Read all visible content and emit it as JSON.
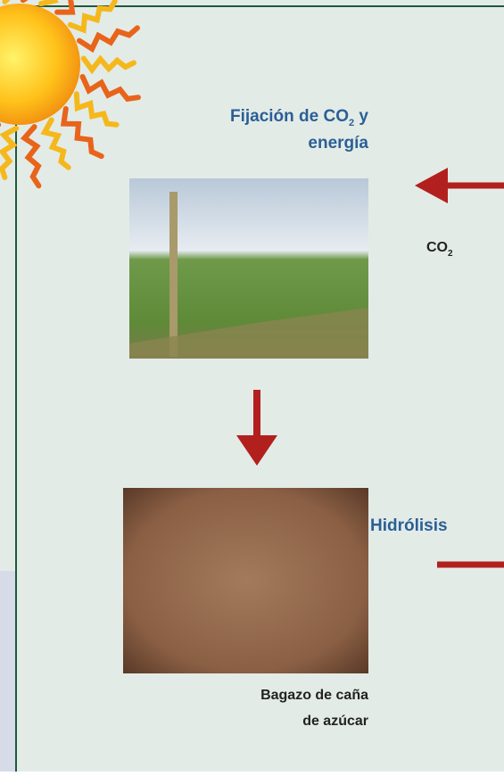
{
  "labels": {
    "fixation": {
      "line1_before": "Fijación de CO",
      "line1_sub": "2",
      "line1_after": " y",
      "line2": "energía"
    },
    "co2": {
      "text": "CO",
      "sub": "2"
    },
    "hydrolysis": "Hidrólisis",
    "bagasse": {
      "line1": "Bagazo de caña",
      "line2": "de azúcar"
    }
  }
}
